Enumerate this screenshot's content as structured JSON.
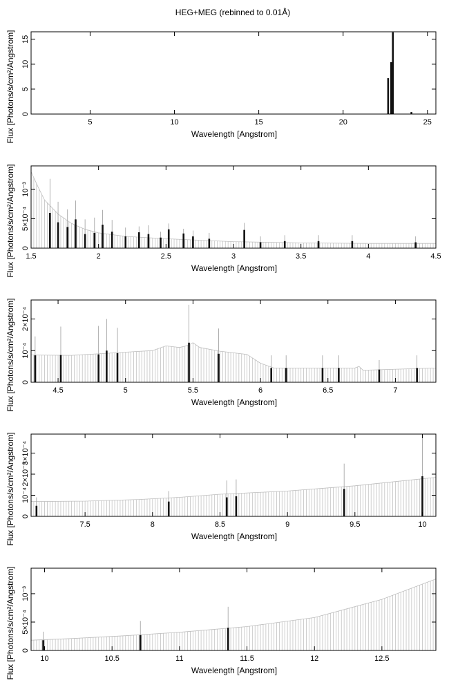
{
  "title": "HEG+MEG (rebinned to 0.01Å)",
  "chart_data": [
    {
      "type": "bar",
      "panel": "full-range",
      "xlabel": "Wavelength [Angstrom]",
      "ylabel": "Flux [Photons/s/cm²/Angstrom]",
      "xlim": [
        1.5,
        25.5
      ],
      "ylim": [
        0,
        16.5
      ],
      "xticks": [
        {
          "v": 5,
          "label": "5"
        },
        {
          "v": 10,
          "label": "10"
        },
        {
          "v": 15,
          "label": "15"
        },
        {
          "v": 20,
          "label": "20"
        },
        {
          "v": 25,
          "label": "25"
        }
      ],
      "yticks": [
        {
          "v": 0,
          "label": "0"
        },
        {
          "v": 5,
          "label": "5"
        },
        {
          "v": 10,
          "label": "10"
        },
        {
          "v": 15,
          "label": "15"
        }
      ],
      "continuum": [
        [
          1.5,
          0.0002
        ],
        [
          25.5,
          0.0002
        ]
      ],
      "spikes": [
        {
          "x": 22.67,
          "y": 7.2,
          "err": 0
        },
        {
          "x": 22.85,
          "y": 10.4,
          "err": 0
        },
        {
          "x": 22.95,
          "y": 16.4,
          "err": 0
        },
        {
          "x": 24.05,
          "y": 0.4,
          "err": 0
        }
      ]
    },
    {
      "type": "bar",
      "panel": "1.5-4.5",
      "xlabel": "Wavelength [Angstrom]",
      "ylabel": "Flux [Photons/s/cm²/Angstrom]",
      "xlim": [
        1.5,
        4.5
      ],
      "ylim": [
        0,
        0.0014
      ],
      "xticks": [
        {
          "v": 1.5,
          "label": "1.5"
        },
        {
          "v": 2,
          "label": "2"
        },
        {
          "v": 2.5,
          "label": "2.5"
        },
        {
          "v": 3,
          "label": "3"
        },
        {
          "v": 3.5,
          "label": "3.5"
        },
        {
          "v": 4,
          "label": "4"
        },
        {
          "v": 4.5,
          "label": "4.5"
        }
      ],
      "yticks": [
        {
          "v": 0,
          "label": "0"
        },
        {
          "v": 0.0005,
          "label": "5×10⁻⁴"
        },
        {
          "v": 0.001,
          "label": "10⁻³"
        }
      ],
      "continuum": [
        [
          1.5,
          0.0013
        ],
        [
          1.55,
          0.00105
        ],
        [
          1.6,
          0.00082
        ],
        [
          1.7,
          0.00058
        ],
        [
          1.8,
          0.00042
        ],
        [
          1.9,
          0.00032
        ],
        [
          2.0,
          0.00026
        ],
        [
          2.2,
          0.0002
        ],
        [
          2.5,
          0.00016
        ],
        [
          3.0,
          0.00011
        ],
        [
          3.5,
          9e-05
        ],
        [
          4.0,
          8e-05
        ],
        [
          4.5,
          8e-05
        ]
      ],
      "spikes": [
        {
          "x": 1.64,
          "y": 0.0006,
          "err": 0.00058
        },
        {
          "x": 1.7,
          "y": 0.00044,
          "err": 0.00035
        },
        {
          "x": 1.77,
          "y": 0.00036,
          "err": 0.0003
        },
        {
          "x": 1.83,
          "y": 0.00049,
          "err": 0.00032
        },
        {
          "x": 1.9,
          "y": 0.00024,
          "err": 0.00025
        },
        {
          "x": 1.97,
          "y": 0.00026,
          "err": 0.00026
        },
        {
          "x": 2.03,
          "y": 0.0004,
          "err": 0.00025
        },
        {
          "x": 2.1,
          "y": 0.00028,
          "err": 0.0002
        },
        {
          "x": 2.2,
          "y": 0.0002,
          "err": 0.00015
        },
        {
          "x": 2.3,
          "y": 0.00027,
          "err": 0.0001
        },
        {
          "x": 2.37,
          "y": 0.00024,
          "err": 0.00015
        },
        {
          "x": 2.46,
          "y": 0.00018,
          "err": 0.0001
        },
        {
          "x": 2.52,
          "y": 0.00032,
          "err": 0.0001
        },
        {
          "x": 2.63,
          "y": 0.00025,
          "err": 8e-05
        },
        {
          "x": 2.7,
          "y": 0.0002,
          "err": 0.0001
        },
        {
          "x": 2.82,
          "y": 0.00016,
          "err": 0.0001
        },
        {
          "x": 3.08,
          "y": 0.00031,
          "err": 0.00012
        },
        {
          "x": 3.2,
          "y": 0.0001,
          "err": 0.0001
        },
        {
          "x": 3.38,
          "y": 0.00012,
          "err": 0.0001
        },
        {
          "x": 3.63,
          "y": 0.00012,
          "err": 0.0001
        },
        {
          "x": 3.88,
          "y": 0.00012,
          "err": 0.0001
        },
        {
          "x": 4.35,
          "y": 0.0001,
          "err": 0.0001
        }
      ]
    },
    {
      "type": "bar",
      "panel": "4.3-7.3",
      "xlabel": "Wavelength [Angstrom]",
      "ylabel": "Flux [Photons/s/cm²/Angstrom]",
      "xlim": [
        4.3,
        7.3
      ],
      "ylim": [
        0,
        0.00026
      ],
      "xticks": [
        {
          "v": 4.5,
          "label": "4.5"
        },
        {
          "v": 5,
          "label": "5"
        },
        {
          "v": 5.5,
          "label": "5.5"
        },
        {
          "v": 6,
          "label": "6"
        },
        {
          "v": 6.5,
          "label": "6.5"
        },
        {
          "v": 7,
          "label": "7"
        }
      ],
      "yticks": [
        {
          "v": 0,
          "label": "0"
        },
        {
          "v": 0.0001,
          "label": "10⁻⁴"
        },
        {
          "v": 0.0002,
          "label": "2×10⁻⁴"
        }
      ],
      "continuum": [
        [
          4.3,
          8.6e-05
        ],
        [
          4.6,
          8.5e-05
        ],
        [
          5.0,
          9.5e-05
        ],
        [
          5.2,
          0.0001
        ],
        [
          5.3,
          0.000115
        ],
        [
          5.4,
          0.00011
        ],
        [
          5.45,
          0.000115
        ],
        [
          5.5,
          0.000125
        ],
        [
          5.55,
          0.00011
        ],
        [
          5.7,
          9.8e-05
        ],
        [
          5.9,
          8.8e-05
        ],
        [
          6.0,
          6e-05
        ],
        [
          6.1,
          4.5e-05
        ],
        [
          6.7,
          4.5e-05
        ],
        [
          6.73,
          5e-05
        ],
        [
          6.76,
          3.8e-05
        ],
        [
          7.3,
          4.5e-05
        ]
      ],
      "spikes": [
        {
          "x": 4.33,
          "y": 8.5e-05,
          "err": 6e-05
        },
        {
          "x": 4.52,
          "y": 8.6e-05,
          "err": 9e-05
        },
        {
          "x": 4.8,
          "y": 8.8e-05,
          "err": 9e-05
        },
        {
          "x": 4.86,
          "y": 0.0001,
          "err": 0.0001
        },
        {
          "x": 4.94,
          "y": 9.2e-05,
          "err": 8e-05
        },
        {
          "x": 5.47,
          "y": 0.000125,
          "err": 0.00012
        },
        {
          "x": 5.69,
          "y": 9e-05,
          "err": 8e-05
        },
        {
          "x": 6.08,
          "y": 4.5e-05,
          "err": 4e-05
        },
        {
          "x": 6.19,
          "y": 4.5e-05,
          "err": 4e-05
        },
        {
          "x": 6.46,
          "y": 4.5e-05,
          "err": 4e-05
        },
        {
          "x": 6.58,
          "y": 4.5e-05,
          "err": 4e-05
        },
        {
          "x": 6.88,
          "y": 4e-05,
          "err": 3e-05
        },
        {
          "x": 7.16,
          "y": 4.5e-05,
          "err": 4e-05
        }
      ]
    },
    {
      "type": "bar",
      "panel": "7.1-10.1",
      "xlabel": "Wavelength [Angstrom]",
      "ylabel": "Flux [Photons/s/cm²/Angstrom]",
      "xlim": [
        7.1,
        10.1
      ],
      "ylim": [
        0,
        0.00039
      ],
      "xticks": [
        {
          "v": 7.5,
          "label": "7.5"
        },
        {
          "v": 8,
          "label": "8"
        },
        {
          "v": 8.5,
          "label": "8.5"
        },
        {
          "v": 9,
          "label": "9"
        },
        {
          "v": 9.5,
          "label": "9.5"
        },
        {
          "v": 10,
          "label": "10"
        }
      ],
      "yticks": [
        {
          "v": 0,
          "label": "0"
        },
        {
          "v": 0.0001,
          "label": "10⁻⁴"
        },
        {
          "v": 0.0002,
          "label": "2×10⁻⁴"
        },
        {
          "v": 0.0003,
          "label": "3×10⁻⁴"
        }
      ],
      "continuum": [
        [
          7.1,
          7e-05
        ],
        [
          7.5,
          7.2e-05
        ],
        [
          7.9,
          8e-05
        ],
        [
          8.2,
          9e-05
        ],
        [
          8.5,
          0.000105
        ],
        [
          9.0,
          0.00012
        ],
        [
          9.5,
          0.000145
        ],
        [
          9.8,
          0.000165
        ],
        [
          10.1,
          0.000185
        ]
      ],
      "spikes": [
        {
          "x": 7.14,
          "y": 5e-05,
          "err": 4e-05
        },
        {
          "x": 8.12,
          "y": 7e-05,
          "err": 5e-05
        },
        {
          "x": 8.55,
          "y": 9e-05,
          "err": 8e-05
        },
        {
          "x": 8.62,
          "y": 9.5e-05,
          "err": 8e-05
        },
        {
          "x": 9.42,
          "y": 0.00013,
          "err": 0.00012
        },
        {
          "x": 10.0,
          "y": 0.00019,
          "err": 0.00018
        }
      ]
    },
    {
      "type": "bar",
      "panel": "9.9-12.9",
      "xlabel": "Wavelength [Angstrom]",
      "ylabel": "Flux [Photons/s/cm²/Angstrom]",
      "xlim": [
        9.9,
        12.9
      ],
      "ylim": [
        0,
        0.00145
      ],
      "xticks": [
        {
          "v": 10,
          "label": "10"
        },
        {
          "v": 10.5,
          "label": "10.5"
        },
        {
          "v": 11,
          "label": "11"
        },
        {
          "v": 11.5,
          "label": "11.5"
        },
        {
          "v": 12,
          "label": "12"
        },
        {
          "v": 12.5,
          "label": "12.5"
        }
      ],
      "yticks": [
        {
          "v": 0,
          "label": "0"
        },
        {
          "v": 0.0005,
          "label": "5×10⁻⁴"
        },
        {
          "v": 0.001,
          "label": "10⁻³"
        }
      ],
      "continuum": [
        [
          9.9,
          0.00018
        ],
        [
          10.2,
          0.00021
        ],
        [
          10.6,
          0.00026
        ],
        [
          11.0,
          0.00032
        ],
        [
          11.5,
          0.00042
        ],
        [
          12.0,
          0.00058
        ],
        [
          12.5,
          0.0009
        ],
        [
          12.9,
          0.00126
        ]
      ],
      "spikes": [
        {
          "x": 9.99,
          "y": 0.00018,
          "err": 0.00015
        },
        {
          "x": 10.71,
          "y": 0.00027,
          "err": 0.00025
        },
        {
          "x": 11.36,
          "y": 0.0004,
          "err": 0.00037
        }
      ]
    }
  ]
}
